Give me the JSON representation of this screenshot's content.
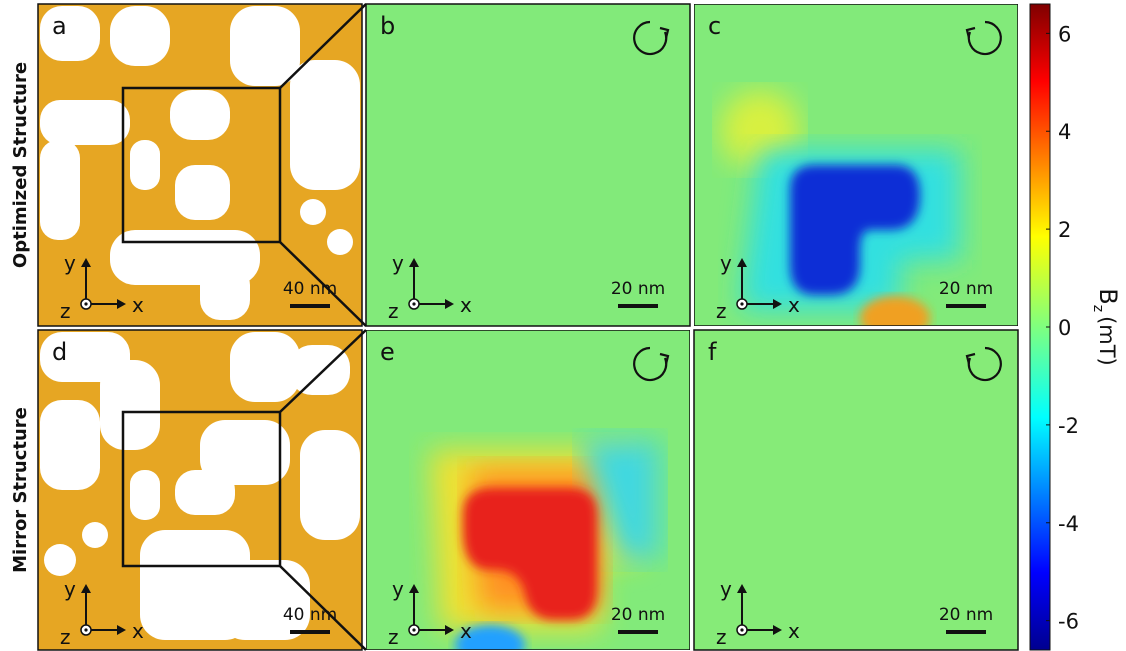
{
  "rows": [
    {
      "label": "Optimized Structure"
    },
    {
      "label": "Mirror Structure"
    }
  ],
  "panels": [
    {
      "label": "a",
      "scale_bar": "40 nm",
      "axes": {
        "x": "x",
        "y": "y",
        "z": "z"
      }
    },
    {
      "label": "b",
      "scale_bar": "20 nm",
      "axes": {
        "x": "x",
        "y": "y",
        "z": "z"
      }
    },
    {
      "label": "c",
      "scale_bar": "20 nm",
      "axes": {
        "x": "x",
        "y": "y",
        "z": "z"
      }
    },
    {
      "label": "d",
      "scale_bar": "40 nm",
      "axes": {
        "x": "x",
        "y": "y",
        "z": "z"
      }
    },
    {
      "label": "e",
      "scale_bar": "20 nm",
      "axes": {
        "x": "x",
        "y": "y",
        "z": "z"
      }
    },
    {
      "label": "f",
      "scale_bar": "20 nm",
      "axes": {
        "x": "x",
        "y": "y",
        "z": "z"
      }
    }
  ],
  "colorbar": {
    "symbol": "B",
    "subscript": "z",
    "unit": "(mT)",
    "lim": [
      -6.6,
      6.6
    ],
    "ticks": [
      6,
      4,
      2,
      0,
      -2,
      -4,
      -6
    ]
  }
}
